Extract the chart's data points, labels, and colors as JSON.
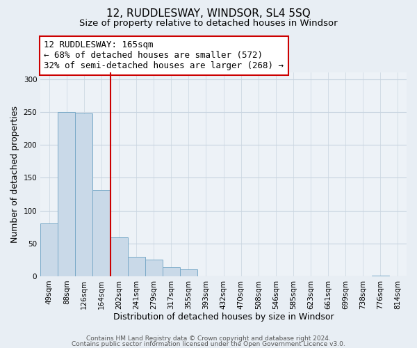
{
  "title": "12, RUDDLESWAY, WINDSOR, SL4 5SQ",
  "subtitle": "Size of property relative to detached houses in Windsor",
  "xlabel": "Distribution of detached houses by size in Windsor",
  "ylabel": "Number of detached properties",
  "bar_labels": [
    "49sqm",
    "88sqm",
    "126sqm",
    "164sqm",
    "202sqm",
    "241sqm",
    "279sqm",
    "317sqm",
    "355sqm",
    "393sqm",
    "432sqm",
    "470sqm",
    "508sqm",
    "546sqm",
    "585sqm",
    "623sqm",
    "661sqm",
    "699sqm",
    "738sqm",
    "776sqm",
    "814sqm"
  ],
  "bar_values": [
    80,
    250,
    248,
    131,
    59,
    30,
    25,
    14,
    11,
    0,
    0,
    0,
    0,
    0,
    0,
    0,
    0,
    0,
    0,
    1,
    0
  ],
  "bar_color": "#c9d9e8",
  "bar_edge_color": "#7aaac8",
  "vline_x_index": 3,
  "vline_color": "#cc0000",
  "annotation_line1": "12 RUDDLESWAY: 165sqm",
  "annotation_line2": "← 68% of detached houses are smaller (572)",
  "annotation_line3": "32% of semi-detached houses are larger (268) →",
  "annotation_box_color": "#ffffff",
  "annotation_box_edge_color": "#cc0000",
  "ylim": [
    0,
    310
  ],
  "yticks": [
    0,
    50,
    100,
    150,
    200,
    250,
    300
  ],
  "background_color": "#e8eef4",
  "plot_bg_color": "#edf2f7",
  "grid_color": "#c8d4e0",
  "footer_line1": "Contains HM Land Registry data © Crown copyright and database right 2024.",
  "footer_line2": "Contains public sector information licensed under the Open Government Licence v3.0.",
  "title_fontsize": 11,
  "subtitle_fontsize": 9.5,
  "xlabel_fontsize": 9,
  "ylabel_fontsize": 9,
  "tick_fontsize": 7.5,
  "footer_fontsize": 6.5,
  "annotation_fontsize": 9
}
